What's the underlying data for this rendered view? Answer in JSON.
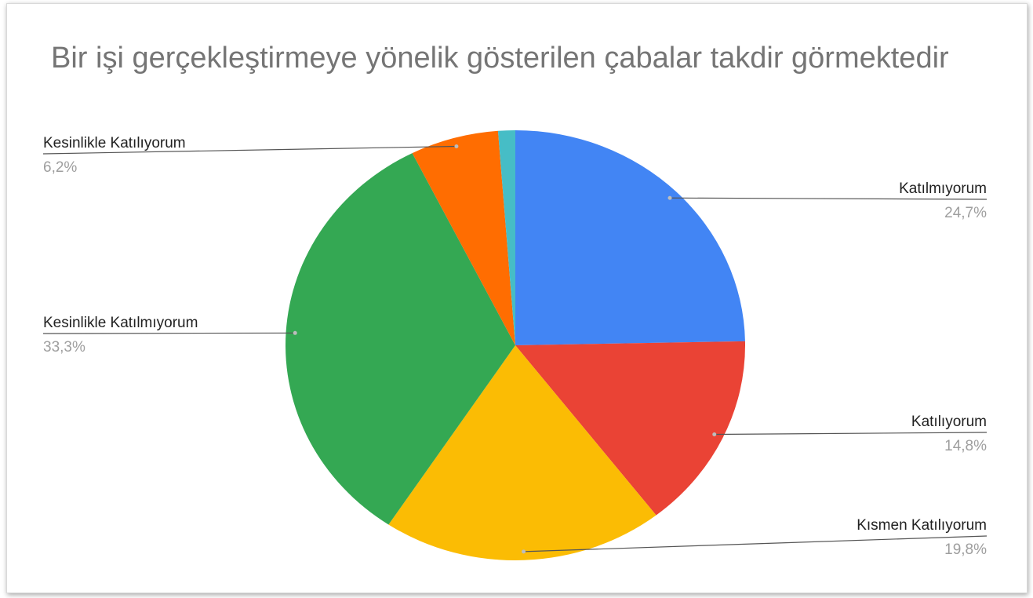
{
  "chart_data": {
    "type": "pie",
    "title": "Bir işi gerçekleştirmeye yönelik gösterilen çabalar takdir görmektedir",
    "slices": [
      {
        "label": "Katılmıyorum",
        "value": 24.7,
        "value_label": "24,7%",
        "color": "#4285f4"
      },
      {
        "label": "Katılıyorum",
        "value": 14.8,
        "value_label": "14,8%",
        "color": "#ea4335"
      },
      {
        "label": "Kısmen Katılıyorum",
        "value": 19.8,
        "value_label": "19,8%",
        "color": "#fbbc04"
      },
      {
        "label": "Kesinlikle Katılmıyorum",
        "value": 33.3,
        "value_label": "33,3%",
        "color": "#34a853"
      },
      {
        "label": "Kesinlikle Katılıyorum",
        "value": 6.2,
        "value_label": "6,2%",
        "color": "#ff6d01"
      },
      {
        "label": "",
        "value": 1.2,
        "value_label": "",
        "color": "#46bdc6"
      }
    ],
    "legend": "none",
    "start_angle_deg": 0,
    "direction": "clockwise"
  }
}
